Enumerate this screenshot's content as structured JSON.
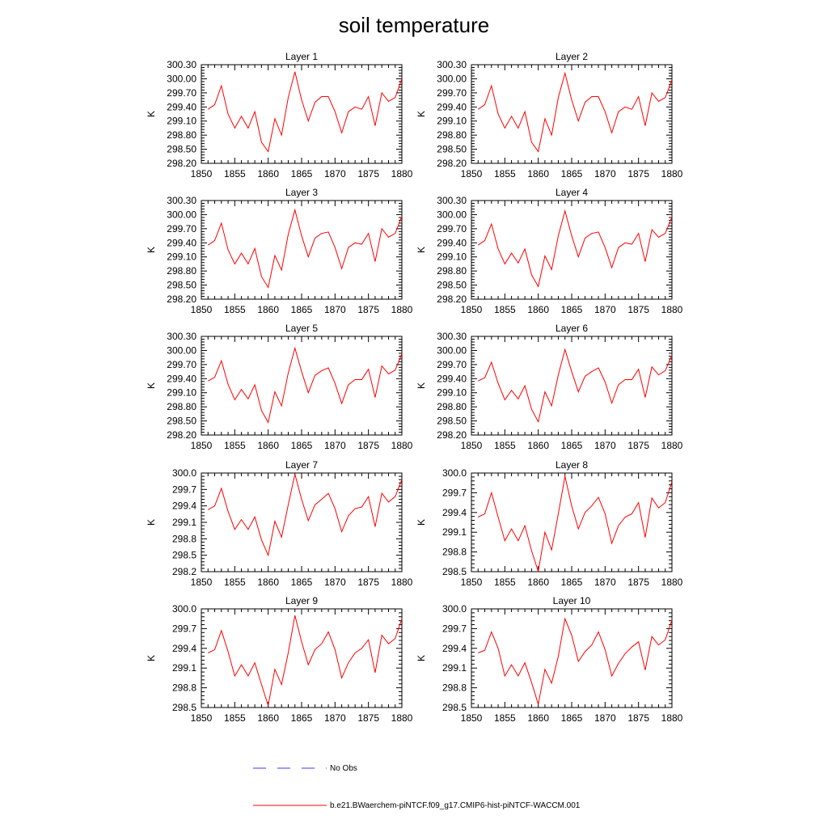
{
  "title": "soil temperature",
  "legend": {
    "obs_label": "No Obs",
    "model_label": "b.e21.BWaerchem-piNTCF.f09_g17.CMIP6-hist-piNTCF-WACCM.001",
    "obs_color": "#3a3aff",
    "model_color": "#ff0000"
  },
  "chart_data": [
    {
      "type": "line",
      "title": "Layer 1",
      "ylabel": "K",
      "xlim": [
        1850,
        1880
      ],
      "ylim": [
        298.2,
        300.3
      ],
      "yticks": [
        "298.20",
        "298.50",
        "298.80",
        "299.10",
        "299.40",
        "299.70",
        "300.00",
        "300.30"
      ],
      "xticks": [
        "1850",
        "1855",
        "1860",
        "1865",
        "1870",
        "1875",
        "1880"
      ],
      "series": [
        {
          "color": "#ff0000",
          "x": [
            1851,
            1852,
            1853,
            1854,
            1855,
            1856,
            1857,
            1858,
            1859,
            1860,
            1861,
            1862,
            1863,
            1864,
            1865,
            1866,
            1867,
            1868,
            1869,
            1870,
            1871,
            1872,
            1873,
            1874,
            1875,
            1876,
            1877,
            1878,
            1879,
            1880
          ],
          "values": [
            299.35,
            299.45,
            299.85,
            299.25,
            298.95,
            299.2,
            298.95,
            299.3,
            298.65,
            298.45,
            299.15,
            298.8,
            299.6,
            300.15,
            299.55,
            299.1,
            299.5,
            299.62,
            299.62,
            299.3,
            298.85,
            299.3,
            299.4,
            299.35,
            299.62,
            299.0,
            299.7,
            299.52,
            299.6,
            300.0
          ]
        }
      ]
    },
    {
      "type": "line",
      "title": "Layer 2",
      "ylabel": "K",
      "xlim": [
        1850,
        1880
      ],
      "ylim": [
        298.2,
        300.3
      ],
      "yticks": [
        "298.20",
        "298.50",
        "298.80",
        "299.10",
        "299.40",
        "299.70",
        "300.00",
        "300.30"
      ],
      "xticks": [
        "1850",
        "1855",
        "1860",
        "1865",
        "1870",
        "1875",
        "1880"
      ],
      "series": [
        {
          "color": "#ff0000",
          "x": [
            1851,
            1852,
            1853,
            1854,
            1855,
            1856,
            1857,
            1858,
            1859,
            1860,
            1861,
            1862,
            1863,
            1864,
            1865,
            1866,
            1867,
            1868,
            1869,
            1870,
            1871,
            1872,
            1873,
            1874,
            1875,
            1876,
            1877,
            1878,
            1879,
            1880
          ],
          "values": [
            299.35,
            299.45,
            299.85,
            299.25,
            298.95,
            299.2,
            298.95,
            299.3,
            298.65,
            298.45,
            299.15,
            298.8,
            299.6,
            300.12,
            299.55,
            299.1,
            299.5,
            299.62,
            299.62,
            299.3,
            298.85,
            299.3,
            299.4,
            299.35,
            299.62,
            299.0,
            299.7,
            299.52,
            299.6,
            299.98
          ]
        }
      ]
    },
    {
      "type": "line",
      "title": "Layer 3",
      "ylabel": "K",
      "xlim": [
        1850,
        1880
      ],
      "ylim": [
        298.2,
        300.3
      ],
      "yticks": [
        "298.20",
        "298.50",
        "298.80",
        "299.10",
        "299.40",
        "299.70",
        "300.00",
        "300.30"
      ],
      "xticks": [
        "1850",
        "1855",
        "1860",
        "1865",
        "1870",
        "1875",
        "1880"
      ],
      "series": [
        {
          "color": "#ff0000",
          "x": [
            1851,
            1852,
            1853,
            1854,
            1855,
            1856,
            1857,
            1858,
            1859,
            1860,
            1861,
            1862,
            1863,
            1864,
            1865,
            1866,
            1867,
            1868,
            1869,
            1870,
            1871,
            1872,
            1873,
            1874,
            1875,
            1876,
            1877,
            1878,
            1879,
            1880
          ],
          "values": [
            299.35,
            299.45,
            299.82,
            299.25,
            298.95,
            299.18,
            298.95,
            299.28,
            298.68,
            298.45,
            299.13,
            298.82,
            299.58,
            300.1,
            299.55,
            299.1,
            299.5,
            299.6,
            299.63,
            299.3,
            298.85,
            299.3,
            299.4,
            299.37,
            299.6,
            299.0,
            299.7,
            299.52,
            299.6,
            299.97
          ]
        }
      ]
    },
    {
      "type": "line",
      "title": "Layer 4",
      "ylabel": "K",
      "xlim": [
        1850,
        1880
      ],
      "ylim": [
        298.2,
        300.3
      ],
      "yticks": [
        "298.20",
        "298.50",
        "298.80",
        "299.10",
        "299.40",
        "299.70",
        "300.00",
        "300.30"
      ],
      "xticks": [
        "1850",
        "1855",
        "1860",
        "1865",
        "1870",
        "1875",
        "1880"
      ],
      "series": [
        {
          "color": "#ff0000",
          "x": [
            1851,
            1852,
            1853,
            1854,
            1855,
            1856,
            1857,
            1858,
            1859,
            1860,
            1861,
            1862,
            1863,
            1864,
            1865,
            1866,
            1867,
            1868,
            1869,
            1870,
            1871,
            1872,
            1873,
            1874,
            1875,
            1876,
            1877,
            1878,
            1879,
            1880
          ],
          "values": [
            299.35,
            299.45,
            299.8,
            299.27,
            298.95,
            299.18,
            298.97,
            299.27,
            298.72,
            298.47,
            299.12,
            298.83,
            299.55,
            300.08,
            299.55,
            299.1,
            299.5,
            299.6,
            299.63,
            299.3,
            298.87,
            299.3,
            299.4,
            299.37,
            299.6,
            299.0,
            299.68,
            299.52,
            299.6,
            299.95
          ]
        }
      ]
    },
    {
      "type": "line",
      "title": "Layer 5",
      "ylabel": "K",
      "xlim": [
        1850,
        1880
      ],
      "ylim": [
        298.2,
        300.3
      ],
      "yticks": [
        "298.20",
        "298.50",
        "298.80",
        "299.10",
        "299.40",
        "299.70",
        "300.00",
        "300.30"
      ],
      "xticks": [
        "1850",
        "1855",
        "1860",
        "1865",
        "1870",
        "1875",
        "1880"
      ],
      "series": [
        {
          "color": "#ff0000",
          "x": [
            1851,
            1852,
            1853,
            1854,
            1855,
            1856,
            1857,
            1858,
            1859,
            1860,
            1861,
            1862,
            1863,
            1864,
            1865,
            1866,
            1867,
            1868,
            1869,
            1870,
            1871,
            1872,
            1873,
            1874,
            1875,
            1876,
            1877,
            1878,
            1879,
            1880
          ],
          "values": [
            299.35,
            299.43,
            299.78,
            299.28,
            298.95,
            299.17,
            298.97,
            299.27,
            298.72,
            298.47,
            299.12,
            298.82,
            299.52,
            300.05,
            299.55,
            299.1,
            299.47,
            299.57,
            299.63,
            299.3,
            298.87,
            299.27,
            299.38,
            299.38,
            299.6,
            299.0,
            299.67,
            299.5,
            299.58,
            299.93
          ]
        }
      ]
    },
    {
      "type": "line",
      "title": "Layer 6",
      "ylabel": "K",
      "xlim": [
        1850,
        1880
      ],
      "ylim": [
        298.2,
        300.3
      ],
      "yticks": [
        "298.20",
        "298.50",
        "298.80",
        "299.10",
        "299.40",
        "299.70",
        "300.00",
        "300.30"
      ],
      "xticks": [
        "1850",
        "1855",
        "1860",
        "1865",
        "1870",
        "1875",
        "1880"
      ],
      "series": [
        {
          "color": "#ff0000",
          "x": [
            1851,
            1852,
            1853,
            1854,
            1855,
            1856,
            1857,
            1858,
            1859,
            1860,
            1861,
            1862,
            1863,
            1864,
            1865,
            1866,
            1867,
            1868,
            1869,
            1870,
            1871,
            1872,
            1873,
            1874,
            1875,
            1876,
            1877,
            1878,
            1879,
            1880
          ],
          "values": [
            299.35,
            299.42,
            299.75,
            299.3,
            298.95,
            299.15,
            298.97,
            299.25,
            298.75,
            298.48,
            299.12,
            298.82,
            299.48,
            300.02,
            299.55,
            299.12,
            299.45,
            299.55,
            299.63,
            299.33,
            298.88,
            299.27,
            299.38,
            299.38,
            299.6,
            299.0,
            299.65,
            299.48,
            299.57,
            299.9
          ]
        }
      ]
    },
    {
      "type": "line",
      "title": "Layer 7",
      "ylabel": "K",
      "xlim": [
        1850,
        1880
      ],
      "ylim": [
        298.2,
        300.0
      ],
      "yticks": [
        "298.2",
        "298.5",
        "298.8",
        "299.1",
        "299.4",
        "299.7",
        "300.0"
      ],
      "xticks": [
        "1850",
        "1855",
        "1860",
        "1865",
        "1870",
        "1875",
        "1880"
      ],
      "series": [
        {
          "color": "#ff0000",
          "x": [
            1851,
            1852,
            1853,
            1854,
            1855,
            1856,
            1857,
            1858,
            1859,
            1860,
            1861,
            1862,
            1863,
            1864,
            1865,
            1866,
            1867,
            1868,
            1869,
            1870,
            1871,
            1872,
            1873,
            1874,
            1875,
            1876,
            1877,
            1878,
            1879,
            1880
          ],
          "values": [
            299.33,
            299.4,
            299.72,
            299.3,
            298.97,
            299.15,
            298.97,
            299.2,
            298.78,
            298.5,
            299.12,
            298.83,
            299.42,
            299.98,
            299.52,
            299.13,
            299.42,
            299.52,
            299.63,
            299.35,
            298.93,
            299.22,
            299.35,
            299.38,
            299.57,
            299.02,
            299.63,
            299.47,
            299.57,
            299.88
          ]
        }
      ]
    },
    {
      "type": "line",
      "title": "Layer 8",
      "ylabel": "K",
      "xlim": [
        1850,
        1880
      ],
      "ylim": [
        298.5,
        300.0
      ],
      "yticks": [
        "298.5",
        "298.8",
        "299.1",
        "299.4",
        "299.7",
        "300.0"
      ],
      "xticks": [
        "1850",
        "1855",
        "1860",
        "1865",
        "1870",
        "1875",
        "1880"
      ],
      "series": [
        {
          "color": "#ff0000",
          "x": [
            1851,
            1852,
            1853,
            1854,
            1855,
            1856,
            1857,
            1858,
            1859,
            1860,
            1861,
            1862,
            1863,
            1864,
            1865,
            1866,
            1867,
            1868,
            1869,
            1870,
            1871,
            1872,
            1873,
            1874,
            1875,
            1876,
            1877,
            1878,
            1879,
            1880
          ],
          "values": [
            299.33,
            299.38,
            299.7,
            299.33,
            298.97,
            299.15,
            298.97,
            299.2,
            298.82,
            298.5,
            299.1,
            298.83,
            299.38,
            299.95,
            299.5,
            299.15,
            299.4,
            299.5,
            299.63,
            299.38,
            298.93,
            299.2,
            299.33,
            299.38,
            299.55,
            299.02,
            299.62,
            299.47,
            299.55,
            299.87
          ]
        }
      ]
    },
    {
      "type": "line",
      "title": "Layer 9",
      "ylabel": "K",
      "xlim": [
        1850,
        1880
      ],
      "ylim": [
        298.5,
        300.0
      ],
      "yticks": [
        "298.5",
        "298.8",
        "299.1",
        "299.4",
        "299.7",
        "300.0"
      ],
      "xticks": [
        "1850",
        "1855",
        "1860",
        "1865",
        "1870",
        "1875",
        "1880"
      ],
      "series": [
        {
          "color": "#ff0000",
          "x": [
            1851,
            1852,
            1853,
            1854,
            1855,
            1856,
            1857,
            1858,
            1859,
            1860,
            1861,
            1862,
            1863,
            1864,
            1865,
            1866,
            1867,
            1868,
            1869,
            1870,
            1871,
            1872,
            1873,
            1874,
            1875,
            1876,
            1877,
            1878,
            1879,
            1880
          ],
          "values": [
            299.33,
            299.38,
            299.67,
            299.35,
            298.98,
            299.15,
            298.98,
            299.18,
            298.85,
            298.53,
            299.08,
            298.85,
            299.33,
            299.9,
            299.5,
            299.15,
            299.38,
            299.47,
            299.65,
            299.38,
            298.95,
            299.18,
            299.33,
            299.4,
            299.53,
            299.03,
            299.6,
            299.47,
            299.55,
            299.85
          ]
        }
      ]
    },
    {
      "type": "line",
      "title": "Layer 10",
      "ylabel": "K",
      "xlim": [
        1850,
        1880
      ],
      "ylim": [
        298.5,
        300.0
      ],
      "yticks": [
        "298.5",
        "298.8",
        "299.1",
        "299.4",
        "299.7",
        "300.0"
      ],
      "xticks": [
        "1850",
        "1855",
        "1860",
        "1865",
        "1870",
        "1875",
        "1880"
      ],
      "series": [
        {
          "color": "#ff0000",
          "x": [
            1851,
            1852,
            1853,
            1854,
            1855,
            1856,
            1857,
            1858,
            1859,
            1860,
            1861,
            1862,
            1863,
            1864,
            1865,
            1866,
            1867,
            1868,
            1869,
            1870,
            1871,
            1872,
            1873,
            1874,
            1875,
            1876,
            1877,
            1878,
            1879,
            1880
          ],
          "values": [
            299.33,
            299.37,
            299.65,
            299.4,
            298.98,
            299.15,
            298.98,
            299.18,
            298.88,
            298.55,
            299.08,
            298.87,
            299.28,
            299.85,
            299.6,
            299.2,
            299.35,
            299.45,
            299.65,
            299.38,
            298.98,
            299.17,
            299.32,
            299.42,
            299.5,
            299.07,
            299.58,
            299.45,
            299.53,
            299.83
          ]
        }
      ]
    }
  ]
}
